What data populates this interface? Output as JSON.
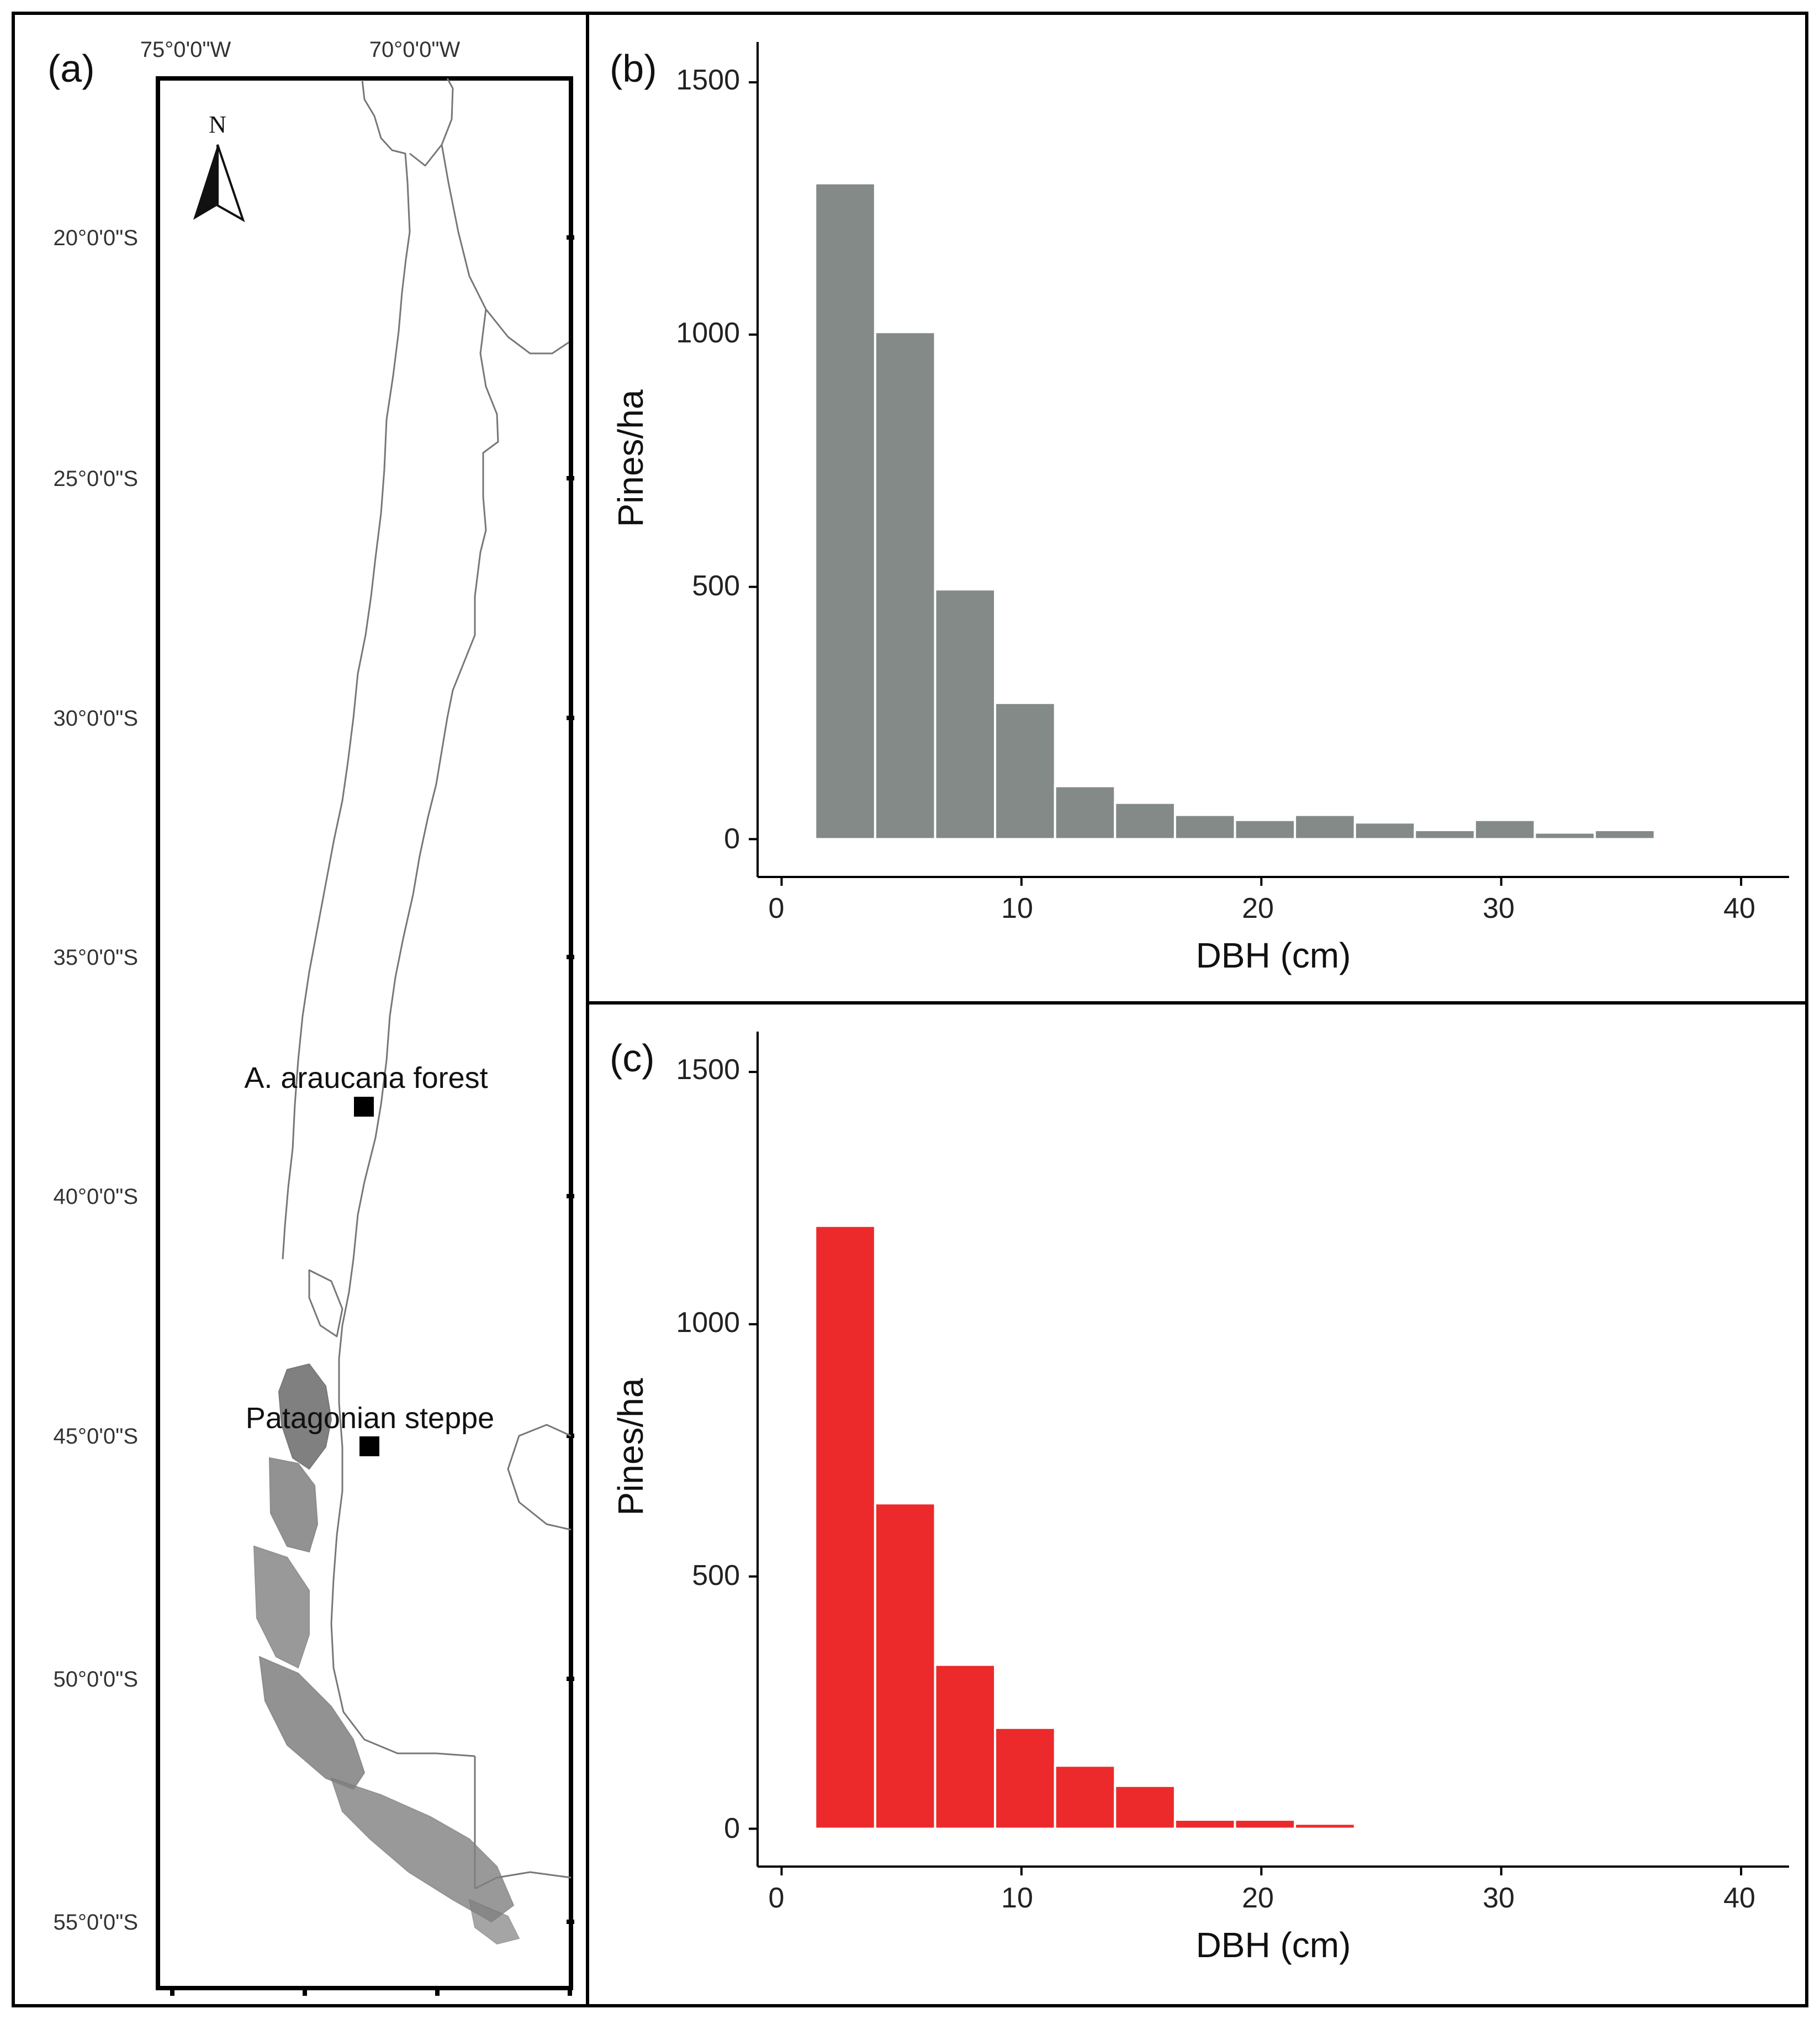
{
  "map": {
    "panel_label": "(a)",
    "lon_ticks": [
      "75°0'0\"W",
      "70°0'0\"W"
    ],
    "lat_ticks": [
      "20°0'0\"S",
      "25°0'0\"S",
      "30°0'0\"S",
      "35°0'0\"S",
      "40°0'0\"S",
      "45°0'0\"S",
      "50°0'0\"S",
      "55°0'0\"S"
    ],
    "north_label": "N",
    "sites": [
      {
        "name": "A. araucana forest"
      },
      {
        "name": "Patagonian steppe"
      }
    ],
    "land_color": "#808080",
    "outline_color": "#777777"
  },
  "chart_data": [
    {
      "type": "bar",
      "panel_label": "(b)",
      "xlabel": "DBH (cm)",
      "ylabel": "Pines/ha",
      "xlim": [
        -1,
        42
      ],
      "ylim": [
        -75,
        1580
      ],
      "xticks": [
        0,
        10,
        20,
        30,
        40
      ],
      "yticks": [
        0,
        500,
        1000,
        1500
      ],
      "bin_width": 2.5,
      "bin_starts": [
        1.4,
        3.9,
        6.4,
        8.9,
        11.4,
        13.9,
        16.4,
        18.9,
        21.4,
        23.9,
        26.4,
        28.9,
        31.4,
        33.9
      ],
      "values": [
        1300,
        1005,
        495,
        270,
        105,
        72,
        48,
        38,
        48,
        33,
        18,
        38,
        13,
        18
      ],
      "color": "#838A87"
    },
    {
      "type": "bar",
      "panel_label": "(c)",
      "xlabel": "DBH (cm)",
      "ylabel": "Pines/ha",
      "xlim": [
        -1,
        42
      ],
      "ylim": [
        -75,
        1580
      ],
      "xticks": [
        0,
        10,
        20,
        30,
        40
      ],
      "yticks": [
        0,
        500,
        1000,
        1500
      ],
      "bin_width": 2.5,
      "bin_starts": [
        1.4,
        3.9,
        6.4,
        8.9,
        11.4,
        13.9,
        16.4,
        18.9,
        21.4
      ],
      "values": [
        1195,
        645,
        325,
        200,
        125,
        85,
        18,
        18,
        10
      ],
      "color": "#EC2A2B"
    }
  ]
}
